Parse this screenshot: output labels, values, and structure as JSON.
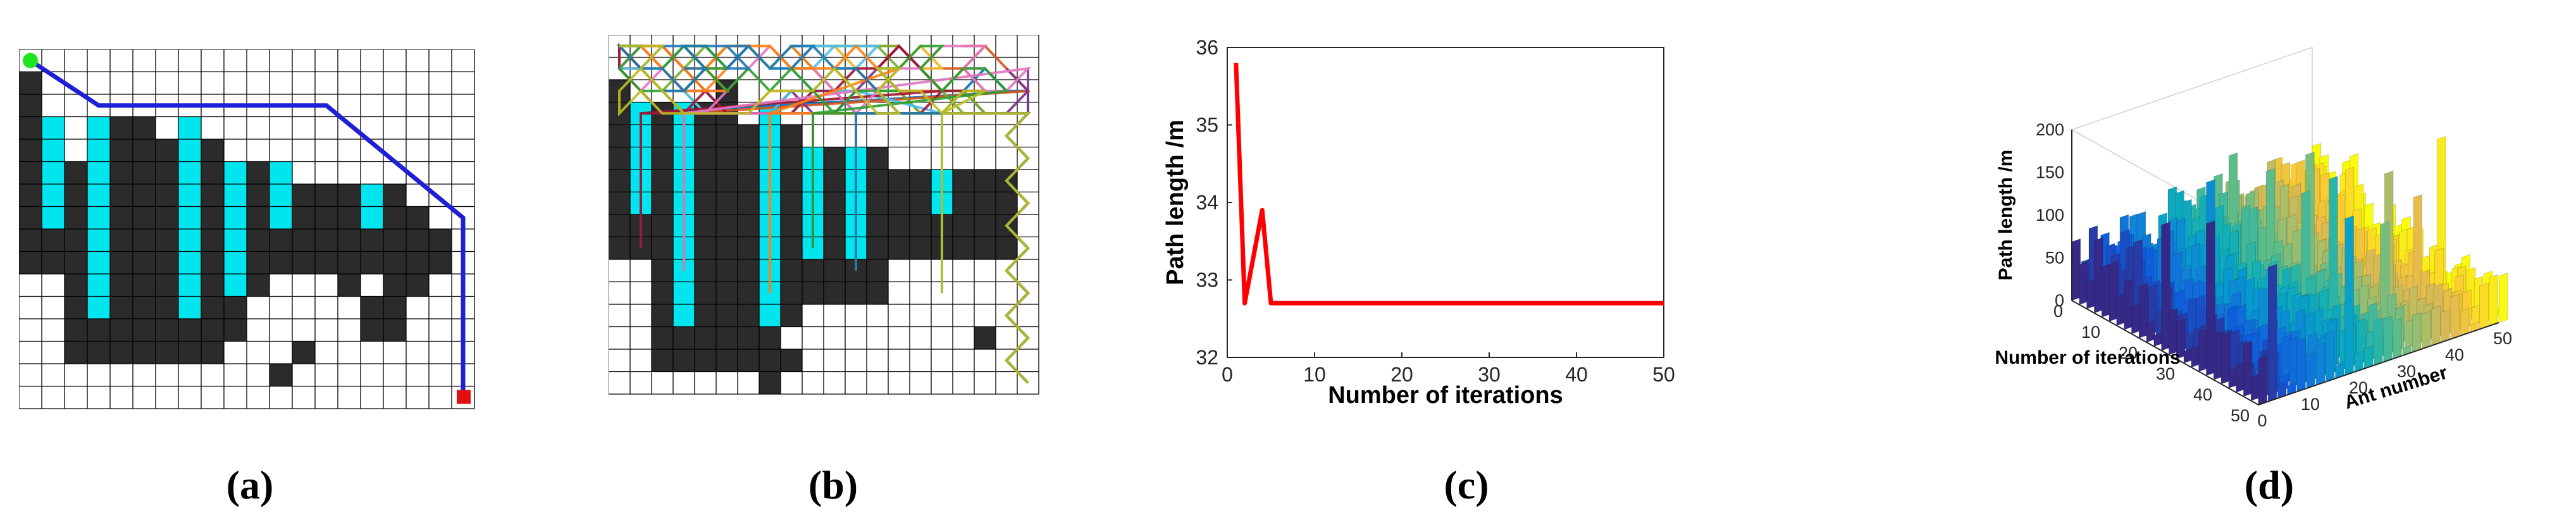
{
  "captions": [
    "(a)",
    "(b)",
    "(c)",
    "(d)"
  ],
  "colors": {
    "obstacle": "#2b2b2b",
    "cyan": "#00e5ee",
    "grid": "#000000",
    "path_a": "#1f1fd6",
    "start": "#1ee61e",
    "goal": "#e01010",
    "convergence": "#ff0000"
  },
  "chart_data": [
    {
      "type": "heatmap",
      "panel": "(a)",
      "title": "",
      "grid_size": [
        20,
        16
      ],
      "legend": "none",
      "description_series": [
        {
          "name": "start",
          "x": [
            0
          ],
          "y": [
            0
          ]
        },
        {
          "name": "goal",
          "x": [
            19
          ],
          "y": [
            15
          ]
        },
        {
          "name": "optimal path",
          "x": [
            0,
            3,
            13,
            19,
            19
          ],
          "y": [
            0,
            2,
            2,
            7,
            15
          ]
        }
      ]
    },
    {
      "type": "heatmap",
      "panel": "(b)",
      "title": "",
      "grid_size": [
        20,
        16
      ],
      "legend": "none",
      "series_count": 12
    },
    {
      "type": "line",
      "panel": "(c)",
      "title": "",
      "xlabel": "Number of iterations",
      "ylabel": "Path length /m",
      "xlim": [
        0,
        50
      ],
      "ylim": [
        32,
        36
      ],
      "xticks": [
        0,
        10,
        20,
        30,
        40,
        50
      ],
      "yticks": [
        32,
        33,
        34,
        35,
        36
      ],
      "series": [
        {
          "name": "shortest path",
          "x": [
            1,
            2,
            3,
            4,
            5,
            10,
            20,
            30,
            40,
            50
          ],
          "y": [
            35.8,
            32.7,
            33.3,
            33.9,
            32.7,
            32.7,
            32.7,
            32.7,
            32.7,
            32.7
          ]
        }
      ]
    },
    {
      "type": "bar",
      "subtype": "3d-bar",
      "panel": "(d)",
      "title": "",
      "xlabel": "Ant number",
      "ylabel": "Number of iterations",
      "zlabel": "Path length /m",
      "xlim": [
        0,
        50
      ],
      "ylim": [
        0,
        50
      ],
      "zlim": [
        0,
        200
      ],
      "xticks": [
        0,
        10,
        20,
        30,
        40,
        50
      ],
      "yticks": [
        0,
        10,
        20,
        30,
        40,
        50
      ],
      "zticks": [
        0,
        50,
        100,
        150,
        200
      ],
      "colormap": "parula"
    }
  ]
}
